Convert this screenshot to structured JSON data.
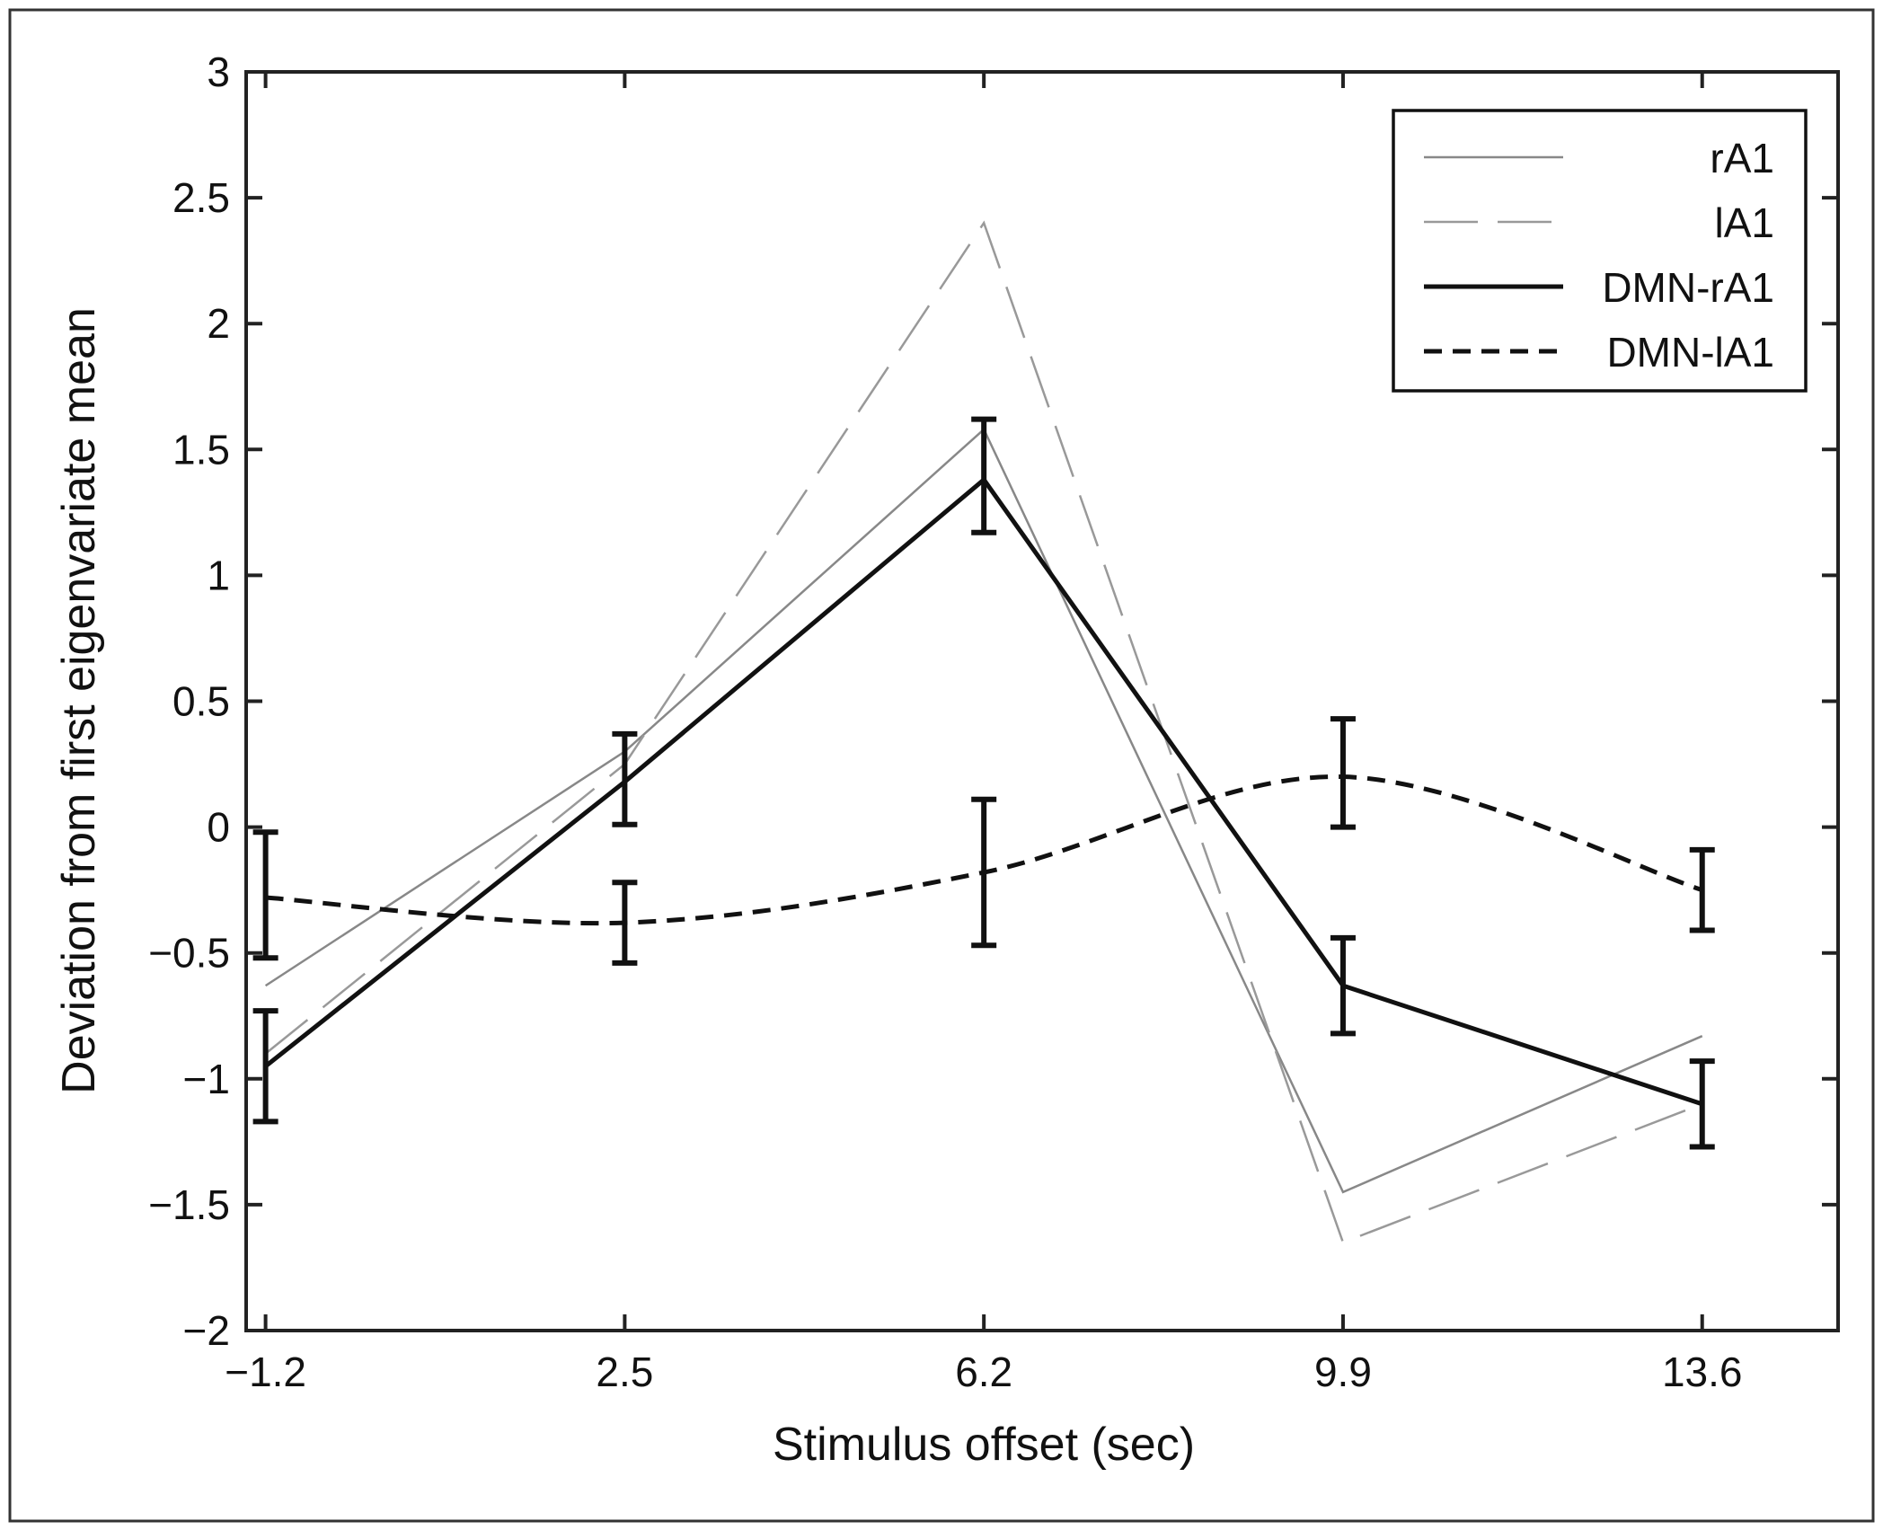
{
  "chart_data": {
    "type": "line",
    "title": "",
    "xlabel": "Stimulus offset (sec)",
    "ylabel": "Deviation from first eigenvariate mean",
    "x": [
      -1.2,
      2.5,
      6.2,
      9.9,
      13.6
    ],
    "xticks": [
      "−1.2",
      "2.5",
      "6.2",
      "9.9",
      "13.6"
    ],
    "yticks": [
      "3",
      "2.5",
      "2",
      "1.5",
      "1",
      "0.5",
      "0",
      "−0.5",
      "−1",
      "−1.5",
      "−2"
    ],
    "ytick_values": [
      3,
      2.5,
      2,
      1.5,
      1,
      0.5,
      0,
      -0.5,
      -1,
      -1.5,
      -2
    ],
    "xlim": [
      -1.4,
      15.0
    ],
    "ylim": [
      -2,
      3
    ],
    "grid": false,
    "legend_position": "top-right",
    "series": [
      {
        "name": "rA1",
        "values": [
          -0.63,
          0.3,
          1.58,
          -1.45,
          -0.83
        ],
        "color": "#888888",
        "style": "solid-thin"
      },
      {
        "name": "lA1",
        "values": [
          -0.9,
          0.25,
          2.4,
          -1.65,
          -1.1
        ],
        "color": "#999999",
        "style": "long-dash"
      },
      {
        "name": "DMN-rA1",
        "values": [
          -0.95,
          0.18,
          1.38,
          -0.63,
          -1.1
        ],
        "color": "#111111",
        "style": "solid-thick",
        "error_low": [
          -1.17,
          0.01,
          1.17,
          -0.82,
          -1.27
        ],
        "error_high": [
          -0.73,
          0.37,
          1.62,
          -0.44,
          -0.93
        ]
      },
      {
        "name": "DMN-lA1",
        "values": [
          -0.28,
          -0.38,
          -0.18,
          0.2,
          -0.25
        ],
        "color": "#111111",
        "style": "short-dash",
        "error_low": [
          -0.52,
          -0.54,
          -0.47,
          0.0,
          -0.41
        ],
        "error_high": [
          -0.02,
          -0.22,
          0.11,
          0.43,
          -0.09
        ]
      }
    ]
  }
}
